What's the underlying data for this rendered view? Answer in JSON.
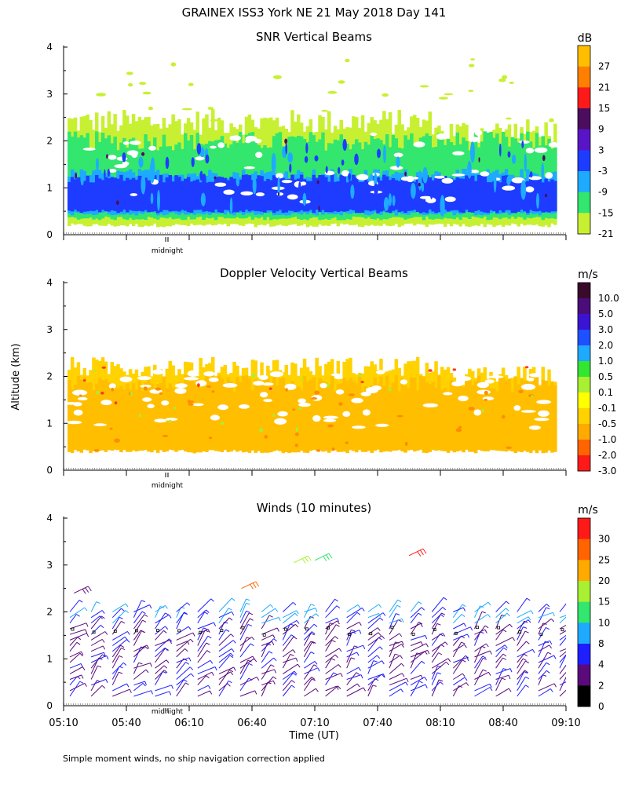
{
  "title": "GRAINEX ISS3 York NE  21 May 2018 Day 141",
  "footer_note": "Simple moment winds, no ship navigation correction applied",
  "y_axis_label": "Altitude (km)",
  "x_axis_label": "Time (UT)",
  "midnight_label": "midnight",
  "chart_data": [
    {
      "type": "heatmap",
      "title": "SNR Vertical Beams",
      "ylabel": "Altitude (km)",
      "ylim": [
        0,
        4
      ],
      "yticks": [
        "0",
        "1",
        "2",
        "3",
        "4"
      ],
      "colorbar_unit": "dB",
      "colorbar_labels": [
        "27",
        "21",
        "15",
        "9",
        "3",
        "-3",
        "-9",
        "-15",
        "-21"
      ],
      "colorbar_colors": [
        "#ffbf00",
        "#ff8000",
        "#ff1a1a",
        "#4b0d5e",
        "#5a14c8",
        "#1e3cff",
        "#1eaaff",
        "#32e66e",
        "#c8f032"
      ],
      "layers": [
        {
          "range_km": [
            0.2,
            2.4
          ],
          "color": "#c8f032",
          "level_db": -21
        },
        {
          "range_km": [
            0.35,
            2.0
          ],
          "color": "#32e66e",
          "level_db": -15
        },
        {
          "range_km": [
            0.45,
            1.3
          ],
          "color": "#1eaaff",
          "level_db": -9
        },
        {
          "range_km": [
            0.5,
            1.2
          ],
          "color": "#1e3cff",
          "level_db": -3
        }
      ]
    },
    {
      "type": "heatmap",
      "title": "Doppler Velocity Vertical Beams",
      "ylabel": "Altitude (km)",
      "ylim": [
        0,
        4
      ],
      "yticks": [
        "0",
        "1",
        "2",
        "3",
        "4"
      ],
      "colorbar_unit": "m/s",
      "colorbar_labels": [
        "10.0",
        "5.0",
        "3.0",
        "2.0",
        "1.0",
        "0.5",
        "0.1",
        "-0.1",
        "-0.5",
        "-1.0",
        "-2.0",
        "-3.0"
      ],
      "colorbar_colors": [
        "#3a0a2a",
        "#4b0d7a",
        "#3a14d2",
        "#1e50ff",
        "#1eaaff",
        "#32e632",
        "#aaf032",
        "#ffff00",
        "#ffd200",
        "#ffaa00",
        "#ff6400",
        "#ff1a1a"
      ],
      "layers": [
        {
          "range_km": [
            0.45,
            2.2
          ],
          "color": "#ffd200",
          "level_ms": -0.5
        },
        {
          "range_km": [
            0.4,
            1.85
          ],
          "color": "#ffbf00",
          "level_ms": -1.0
        }
      ]
    },
    {
      "type": "scatter",
      "title": "Winds (10 minutes)",
      "xlabel": "Time (UT)",
      "ylabel": "Altitude (km)",
      "ylim": [
        0,
        4
      ],
      "yticks": [
        "0",
        "1",
        "2",
        "3",
        "4"
      ],
      "xticks": [
        "05:10",
        "05:40",
        "06:10",
        "06:40",
        "07:10",
        "07:40",
        "08:10",
        "08:40",
        "09:10"
      ],
      "colorbar_unit": "m/s",
      "colorbar_labels": [
        "30",
        "25",
        "20",
        "15",
        "10",
        "8",
        "4",
        "2",
        "0"
      ],
      "colorbar_colors": [
        "#ff1a1a",
        "#ff6400",
        "#ffaa00",
        "#aaf032",
        "#32e66e",
        "#1eaaff",
        "#1e1eff",
        "#5a0a7a",
        "#000000"
      ],
      "wind_profiles": {
        "count": 24,
        "altitude_range_km": [
          0.2,
          2.1
        ]
      },
      "upper_barbs": [
        {
          "time": "07:00",
          "alt_km": 3.05,
          "speed_ms": 15
        },
        {
          "time": "07:10",
          "alt_km": 3.1,
          "speed_ms": 10
        },
        {
          "time": "07:55",
          "alt_km": 3.2,
          "speed_ms": 30
        },
        {
          "time": "06:35",
          "alt_km": 2.5,
          "speed_ms": 25
        },
        {
          "time": "05:15",
          "alt_km": 2.4,
          "speed_ms": 2
        }
      ]
    }
  ]
}
